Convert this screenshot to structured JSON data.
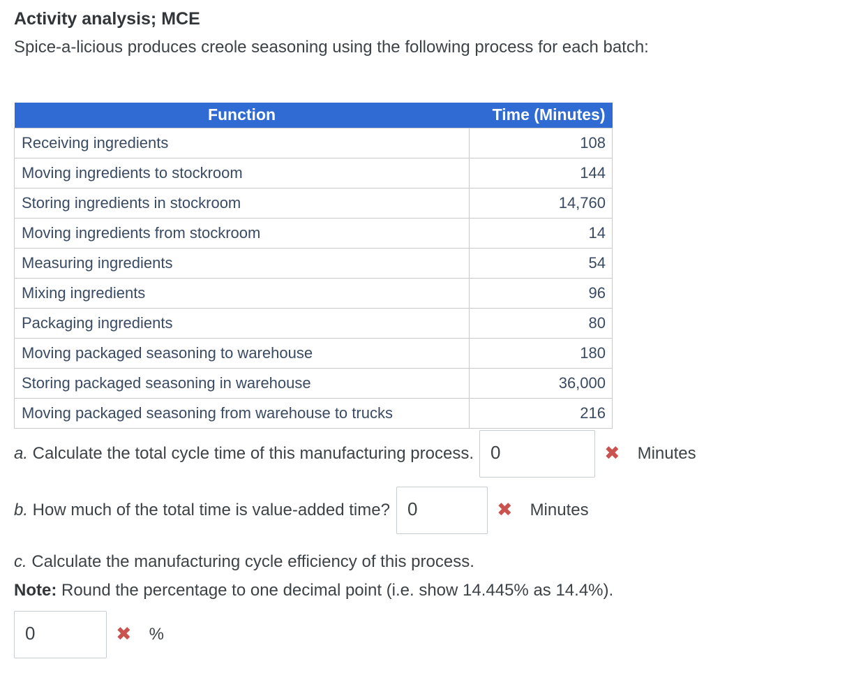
{
  "page": {
    "title": "Activity analysis; MCE",
    "intro": "Spice-a-licious produces creole seasoning using the following process for each batch:"
  },
  "colors": {
    "header_bg": "#2f6bd2",
    "header_text": "#ffffff",
    "table_text": "#394a63",
    "incorrect_mark": "#c9544f"
  },
  "icons": {
    "incorrect": "✖"
  },
  "table": {
    "headers": [
      "Function",
      "Time (Minutes)"
    ],
    "rows": [
      {
        "function": "Receiving ingredients",
        "time": "108"
      },
      {
        "function": "Moving ingredients to stockroom",
        "time": "144"
      },
      {
        "function": "Storing ingredients in stockroom",
        "time": "14,760"
      },
      {
        "function": "Moving ingredients from stockroom",
        "time": "14"
      },
      {
        "function": "Measuring ingredients",
        "time": "54"
      },
      {
        "function": "Mixing ingredients",
        "time": "96"
      },
      {
        "function": "Packaging ingredients",
        "time": "80"
      },
      {
        "function": "Moving packaged seasoning to warehouse",
        "time": "180"
      },
      {
        "function": "Storing packaged seasoning in warehouse",
        "time": "36,000"
      },
      {
        "function": "Moving packaged seasoning from warehouse to trucks",
        "time": "216"
      }
    ]
  },
  "questions": {
    "a": {
      "label": "a.",
      "text": " Calculate the total cycle time of this manufacturing process.",
      "value": "0",
      "unit": "Minutes"
    },
    "b": {
      "label": "b.",
      "text": " How much of the total time is value-added time?",
      "value": "0",
      "unit": "Minutes"
    },
    "c": {
      "label": "c.",
      "text": " Calculate the manufacturing cycle efficiency of this process.",
      "note_label": "Note:",
      "note_text": " Round the percentage to one decimal point (i.e. show 14.445% as 14.4%).",
      "value": "0",
      "unit": "%"
    }
  }
}
